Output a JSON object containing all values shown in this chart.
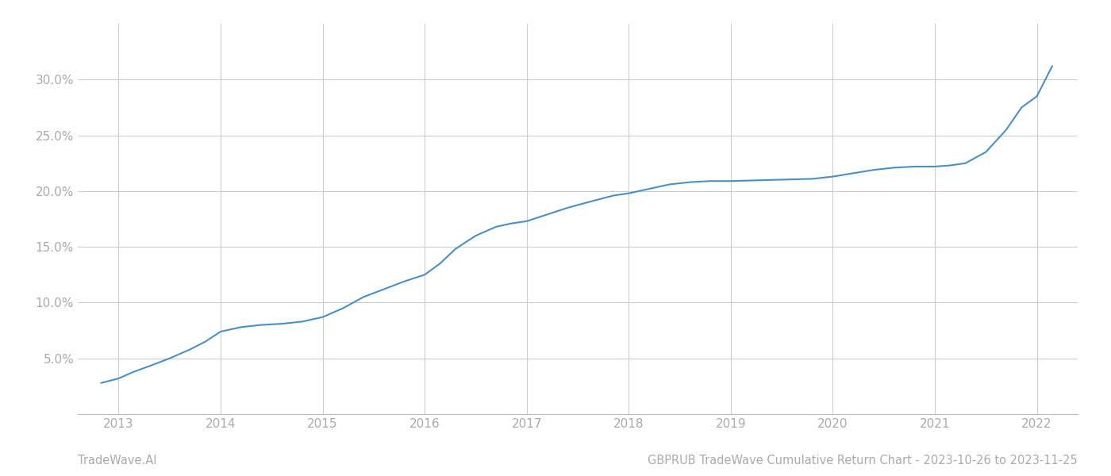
{
  "title": "GBPRUB TradeWave Cumulative Return Chart - 2023-10-26 to 2023-11-25",
  "watermark": "TradeWave.AI",
  "line_color": "#4a90c4",
  "background_color": "#ffffff",
  "grid_color": "#cccccc",
  "x_years": [
    2013,
    2014,
    2015,
    2016,
    2017,
    2018,
    2019,
    2020,
    2021,
    2022
  ],
  "x_data": [
    2012.83,
    2013.0,
    2013.15,
    2013.3,
    2013.5,
    2013.7,
    2013.85,
    2014.0,
    2014.2,
    2014.4,
    2014.6,
    2014.8,
    2015.0,
    2015.2,
    2015.4,
    2015.6,
    2015.8,
    2016.0,
    2016.15,
    2016.3,
    2016.5,
    2016.7,
    2016.85,
    2017.0,
    2017.2,
    2017.4,
    2017.6,
    2017.85,
    2018.0,
    2018.2,
    2018.4,
    2018.6,
    2018.8,
    2019.0,
    2019.2,
    2019.4,
    2019.6,
    2019.8,
    2020.0,
    2020.2,
    2020.4,
    2020.6,
    2020.8,
    2021.0,
    2021.15,
    2021.3,
    2021.5,
    2021.7,
    2021.85,
    2022.0,
    2022.15
  ],
  "y_data": [
    2.8,
    3.2,
    3.8,
    4.3,
    5.0,
    5.8,
    6.5,
    7.4,
    7.8,
    8.0,
    8.1,
    8.3,
    8.7,
    9.5,
    10.5,
    11.2,
    11.9,
    12.5,
    13.5,
    14.8,
    16.0,
    16.8,
    17.1,
    17.3,
    17.9,
    18.5,
    19.0,
    19.6,
    19.8,
    20.2,
    20.6,
    20.8,
    20.9,
    20.9,
    20.95,
    21.0,
    21.05,
    21.1,
    21.3,
    21.6,
    21.9,
    22.1,
    22.2,
    22.2,
    22.3,
    22.5,
    23.5,
    25.5,
    27.5,
    28.5,
    31.2
  ],
  "ylim": [
    0,
    35
  ],
  "yticks": [
    5.0,
    10.0,
    15.0,
    20.0,
    25.0,
    30.0
  ],
  "xlim": [
    2012.6,
    2022.4
  ],
  "title_fontsize": 10.5,
  "watermark_fontsize": 10.5,
  "tick_fontsize": 11,
  "line_width": 1.5
}
